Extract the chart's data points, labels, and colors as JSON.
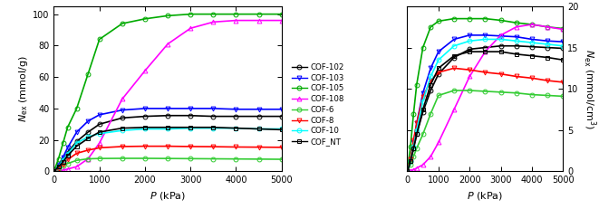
{
  "P": [
    0,
    100,
    200,
    300,
    500,
    750,
    1000,
    1500,
    2000,
    2500,
    3000,
    3500,
    4000,
    4500,
    5000
  ],
  "left": {
    "ylabel": "$N_{\\mathrm{ex}}$ (mmol/g)",
    "ylim": [
      0,
      105
    ],
    "yticks": [
      0,
      20,
      40,
      60,
      80,
      100
    ],
    "series": [
      {
        "label": "COF-102",
        "color": "black",
        "marker": "o",
        "lw": 1.2,
        "y": [
          0,
          3,
          7,
          12,
          19,
          25,
          30,
          34,
          35,
          35.5,
          35.5,
          35,
          35,
          35,
          35
        ]
      },
      {
        "label": "COF-103",
        "color": "blue",
        "marker": "v",
        "lw": 1.2,
        "y": [
          0,
          4,
          9,
          15,
          25,
          32,
          36,
          39,
          40,
          40,
          40,
          40,
          39.5,
          39.5,
          39.5
        ]
      },
      {
        "label": "COF-105",
        "color": "#00aa00",
        "marker": "o",
        "lw": 1.2,
        "y": [
          0,
          8,
          18,
          28,
          40,
          62,
          84,
          94,
          97,
          99,
          100,
          100,
          100,
          100,
          100
        ]
      },
      {
        "label": "COF-108",
        "color": "magenta",
        "marker": "^",
        "lw": 1.2,
        "y": [
          0,
          0.3,
          0.8,
          1.5,
          3,
          8,
          18,
          46,
          64,
          81,
          91,
          95,
          96,
          96,
          96
        ]
      },
      {
        "label": "COF-6",
        "color": "#33cc33",
        "marker": "o",
        "lw": 1.2,
        "y": [
          0,
          2,
          3.5,
          5,
          7,
          8,
          8.2,
          8.3,
          8.3,
          8.2,
          8.1,
          8.0,
          7.9,
          7.8,
          7.7
        ]
      },
      {
        "label": "COF-8",
        "color": "red",
        "marker": "v",
        "lw": 1.2,
        "y": [
          0,
          2,
          4.5,
          7.5,
          11.5,
          13.5,
          15,
          15.8,
          16,
          16,
          15.8,
          15.7,
          15.5,
          15.4,
          15.3
        ]
      },
      {
        "label": "COF-10",
        "color": "cyan",
        "marker": "o",
        "lw": 1.2,
        "y": [
          0,
          3,
          7,
          11,
          18,
          22,
          24,
          26,
          27,
          27,
          27.5,
          27.5,
          27.5,
          27,
          27
        ]
      },
      {
        "label": "COF_NT",
        "color": "black",
        "marker": "s",
        "lw": 1.2,
        "y": [
          0,
          3,
          6,
          10,
          16,
          21,
          25,
          27.5,
          28,
          28,
          28,
          28,
          27.5,
          27,
          26.5
        ]
      }
    ]
  },
  "right": {
    "ylabel": "$N_{\\mathrm{ex}}$ (mmol/cm$^3$)",
    "ylim": [
      0,
      20
    ],
    "yticks": [
      0,
      5,
      10,
      15,
      20
    ],
    "series": [
      {
        "label": "COF-102",
        "color": "black",
        "marker": "o",
        "lw": 1.2,
        "y": [
          0,
          1.2,
          2.8,
          4.5,
          7.2,
          9.8,
          11.8,
          13.8,
          14.8,
          15.0,
          15.2,
          15.2,
          15.1,
          15.0,
          14.9
        ]
      },
      {
        "label": "COF-103",
        "color": "blue",
        "marker": "v",
        "lw": 1.2,
        "y": [
          0,
          1.5,
          3.5,
          5.8,
          9.5,
          12.5,
          14.5,
          16.0,
          16.5,
          16.5,
          16.4,
          16.3,
          16.0,
          15.8,
          15.7
        ]
      },
      {
        "label": "COF-105",
        "color": "#00aa00",
        "marker": "o",
        "lw": 1.2,
        "y": [
          0,
          3.0,
          7.0,
          10.5,
          15.0,
          17.5,
          18.2,
          18.5,
          18.5,
          18.5,
          18.3,
          18.0,
          17.8,
          17.5,
          17.3
        ]
      },
      {
        "label": "COF-108",
        "color": "magenta",
        "marker": "^",
        "lw": 1.2,
        "y": [
          0,
          0.1,
          0.2,
          0.4,
          0.8,
          1.8,
          3.5,
          7.5,
          11.5,
          14.5,
          16.5,
          17.5,
          17.8,
          17.5,
          17.2
        ]
      },
      {
        "label": "COF-6",
        "color": "#33cc33",
        "marker": "o",
        "lw": 1.2,
        "y": [
          0,
          0.8,
          1.8,
          2.8,
          4.5,
          7.0,
          9.2,
          9.8,
          9.8,
          9.7,
          9.6,
          9.5,
          9.3,
          9.2,
          9.1
        ]
      },
      {
        "label": "COF-8",
        "color": "red",
        "marker": "v",
        "lw": 1.2,
        "y": [
          0,
          1.5,
          3.8,
          5.8,
          9.0,
          11.0,
          12.0,
          12.5,
          12.3,
          12.0,
          11.8,
          11.5,
          11.3,
          11.0,
          10.8
        ]
      },
      {
        "label": "COF-10",
        "color": "cyan",
        "marker": "o",
        "lw": 1.2,
        "y": [
          0,
          1.2,
          3.0,
          5.0,
          8.5,
          11.5,
          13.5,
          15.2,
          15.8,
          16.0,
          16.0,
          15.8,
          15.6,
          15.4,
          15.2
        ]
      },
      {
        "label": "COF_NT",
        "color": "black",
        "marker": "s",
        "lw": 1.2,
        "y": [
          0,
          1.2,
          2.8,
          4.5,
          7.5,
          10.5,
          12.5,
          14.0,
          14.5,
          14.5,
          14.5,
          14.2,
          14.0,
          13.8,
          13.5
        ]
      }
    ]
  },
  "legend_labels": [
    "COF-102",
    "COF-103",
    "COF-105",
    "COF-108",
    "COF-6",
    "COF-8",
    "COF-10",
    "COF_NT"
  ],
  "legend_colors": [
    "black",
    "blue",
    "#00aa00",
    "magenta",
    "#33cc33",
    "red",
    "cyan",
    "black"
  ],
  "legend_markers": [
    "o",
    "v",
    "o",
    "^",
    "o",
    "v",
    "o",
    "s"
  ],
  "xlabel": "$P$ (kPa)",
  "xlim": [
    0,
    5000
  ],
  "xticks": [
    0,
    1000,
    2000,
    3000,
    4000,
    5000
  ]
}
